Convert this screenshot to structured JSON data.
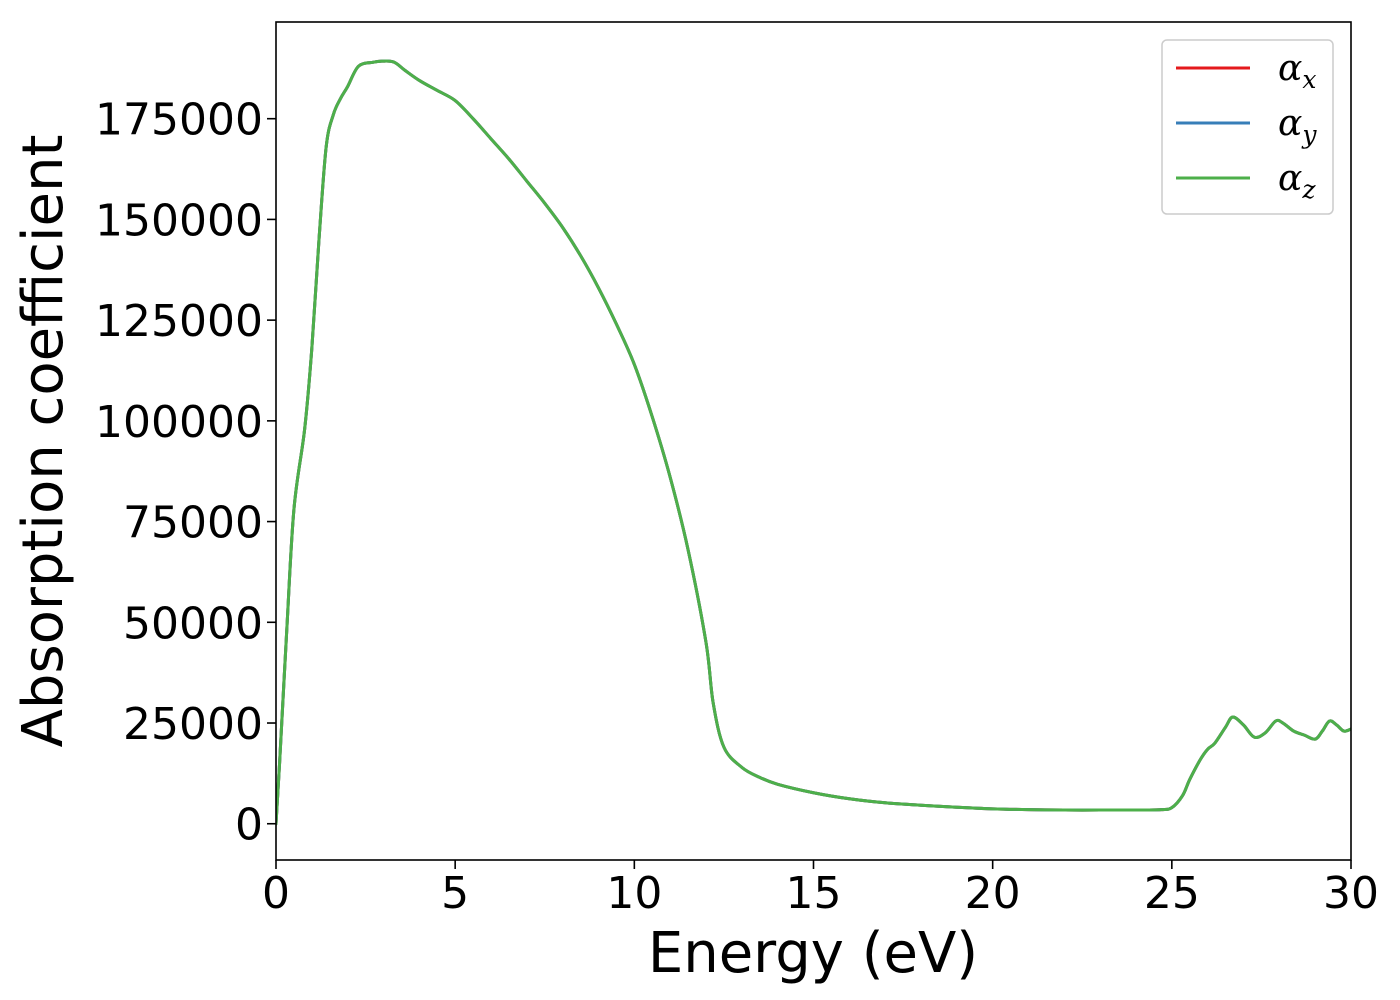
{
  "chart_data": {
    "type": "line",
    "title": "",
    "xlabel": "Energy (eV)",
    "ylabel": "Absorption coefficient",
    "xlim": [
      0,
      30
    ],
    "ylim": [
      -9000,
      199000
    ],
    "xticks": [
      0,
      5,
      10,
      15,
      20,
      25,
      30
    ],
    "xtick_labels": [
      "0",
      "5",
      "10",
      "15",
      "20",
      "25",
      "30"
    ],
    "yticks": [
      0,
      25000,
      50000,
      75000,
      100000,
      125000,
      150000,
      175000
    ],
    "ytick_labels": [
      "0",
      "25000",
      "50000",
      "75000",
      "100000",
      "125000",
      "150000",
      "175000"
    ],
    "grid": false,
    "legend_position": "top-right",
    "x": [
      0.0,
      0.1,
      0.3,
      0.5,
      0.8,
      1.0,
      1.2,
      1.4,
      1.6,
      1.8,
      2.0,
      2.3,
      2.7,
      3.0,
      3.3,
      3.6,
      4.0,
      4.5,
      5.0,
      5.5,
      6.0,
      6.5,
      7.0,
      7.5,
      8.0,
      8.5,
      9.0,
      9.5,
      10.0,
      10.5,
      11.0,
      11.5,
      12.0,
      12.2,
      12.5,
      13.0,
      13.5,
      14.0,
      15.0,
      16.0,
      17.0,
      18.0,
      19.0,
      20.0,
      21.0,
      22.0,
      23.0,
      24.0,
      24.7,
      25.0,
      25.3,
      25.5,
      25.8,
      26.0,
      26.2,
      26.5,
      26.7,
      27.0,
      27.3,
      27.6,
      27.9,
      28.1,
      28.4,
      28.7,
      29.0,
      29.2,
      29.4,
      29.6,
      29.8,
      30.0
    ],
    "series": [
      {
        "name": "αx",
        "color": "#e41a1c",
        "values": [
          0,
          15000,
          48000,
          78000,
          98000,
          118000,
          145000,
          168000,
          176000,
          180000,
          183000,
          188000,
          189000,
          189300,
          189000,
          187000,
          184500,
          182000,
          179500,
          175000,
          170000,
          165000,
          159500,
          154000,
          148000,
          141000,
          133000,
          124000,
          114000,
          101000,
          86000,
          68000,
          45000,
          30000,
          19000,
          14000,
          11500,
          9800,
          7700,
          6200,
          5200,
          4600,
          4100,
          3700,
          3500,
          3400,
          3400,
          3400,
          3500,
          4000,
          7000,
          11000,
          16000,
          18500,
          20000,
          24000,
          26500,
          24500,
          21500,
          22500,
          25500,
          25000,
          23000,
          22000,
          21000,
          23000,
          25500,
          24500,
          23000,
          23500
        ]
      },
      {
        "name": "αy",
        "color": "#377eb8",
        "values": [
          0,
          15000,
          48000,
          78000,
          98000,
          118000,
          145000,
          168000,
          176000,
          180000,
          183000,
          188000,
          189000,
          189300,
          189000,
          187000,
          184500,
          182000,
          179500,
          175000,
          170000,
          165000,
          159500,
          154000,
          148000,
          141000,
          133000,
          124000,
          114000,
          101000,
          86000,
          68000,
          45000,
          30000,
          19000,
          14000,
          11500,
          9800,
          7700,
          6200,
          5200,
          4600,
          4100,
          3700,
          3500,
          3400,
          3400,
          3400,
          3500,
          4000,
          7000,
          11000,
          16000,
          18500,
          20000,
          24000,
          26500,
          24500,
          21500,
          22500,
          25500,
          25000,
          23000,
          22000,
          21000,
          23000,
          25500,
          24500,
          23000,
          23500
        ]
      },
      {
        "name": "αz",
        "color": "#4daf4a",
        "values": [
          0,
          15000,
          48000,
          78000,
          98000,
          118000,
          145000,
          168000,
          176000,
          180000,
          183000,
          188000,
          189000,
          189300,
          189000,
          187000,
          184500,
          182000,
          179500,
          175000,
          170000,
          165000,
          159500,
          154000,
          148000,
          141000,
          133000,
          124000,
          114000,
          101000,
          86000,
          68000,
          45000,
          30000,
          19000,
          14000,
          11500,
          9800,
          7700,
          6200,
          5200,
          4600,
          4100,
          3700,
          3500,
          3400,
          3400,
          3400,
          3500,
          4000,
          7000,
          11000,
          16000,
          18500,
          20000,
          24000,
          26500,
          24500,
          21500,
          22500,
          25500,
          25000,
          23000,
          22000,
          21000,
          23000,
          25500,
          24500,
          23000,
          23500
        ]
      }
    ],
    "legend": [
      {
        "symbol": "α",
        "subscript": "x",
        "color": "#e41a1c"
      },
      {
        "symbol": "α",
        "subscript": "y",
        "color": "#377eb8"
      },
      {
        "symbol": "α",
        "subscript": "z",
        "color": "#4daf4a"
      }
    ]
  }
}
